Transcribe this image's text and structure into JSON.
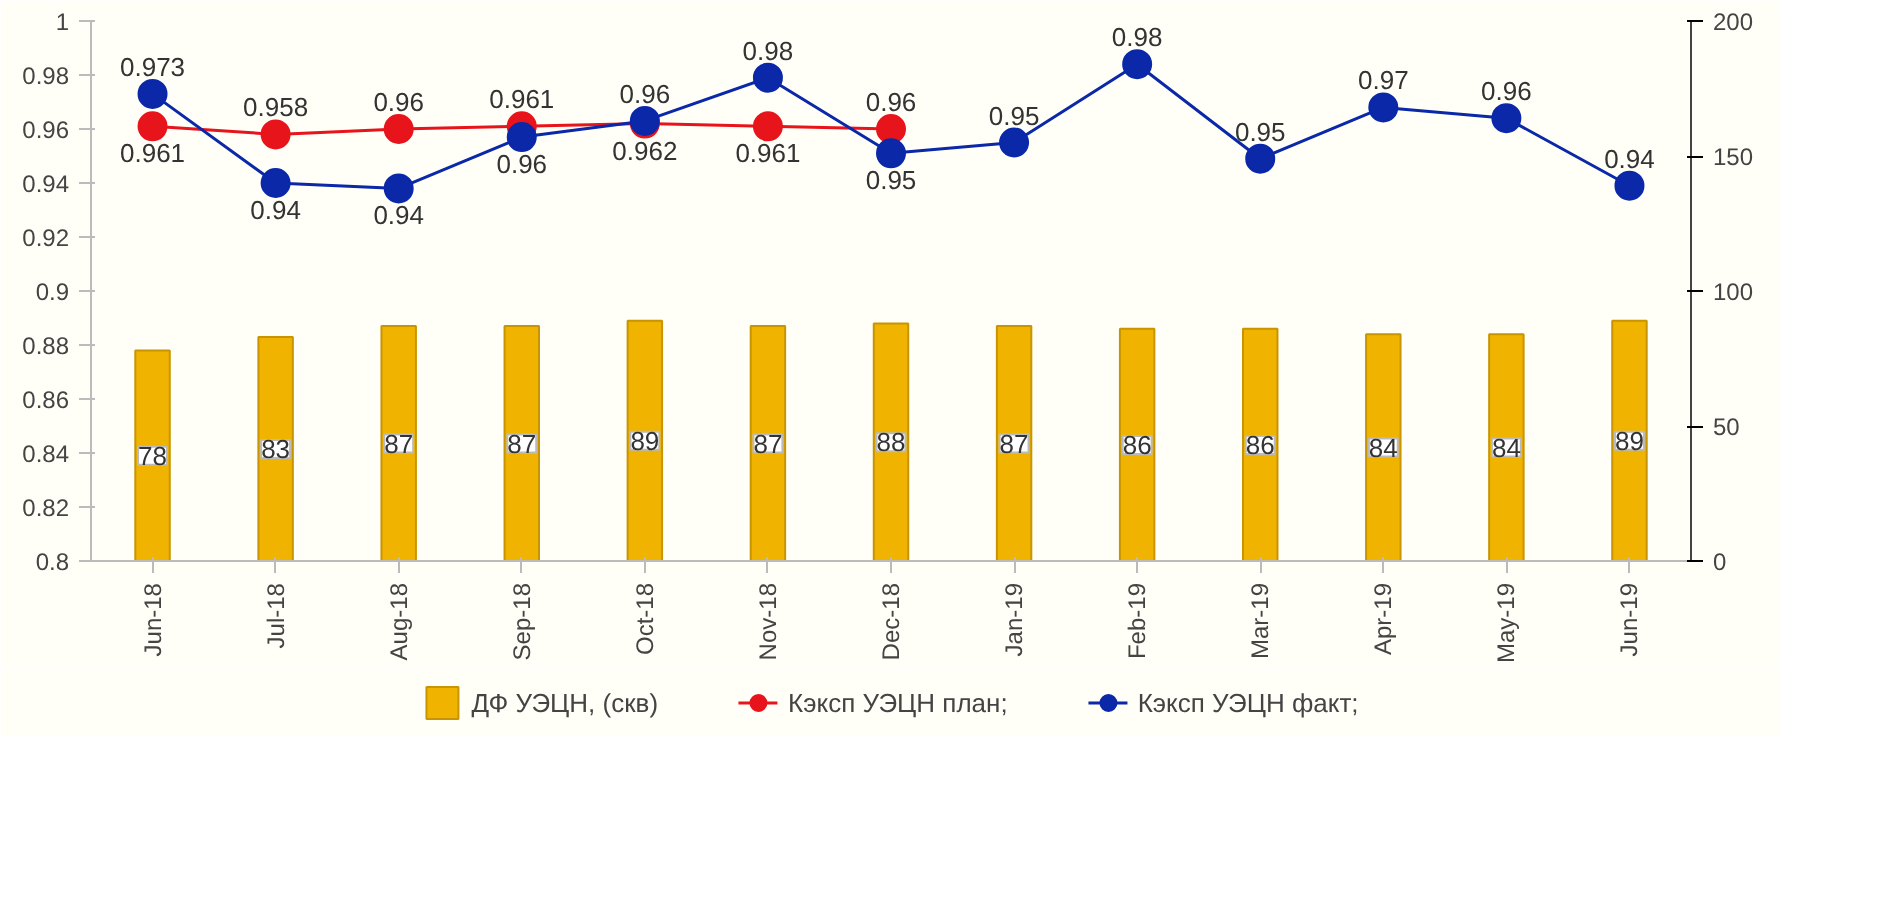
{
  "chart_data": {
    "type": "bar",
    "categories": [
      "Jun-18",
      "Jul-18",
      "Aug-18",
      "Sep-18",
      "Oct-18",
      "Nov-18",
      "Dec-18",
      "Jan-19",
      "Feb-19",
      "Mar-19",
      "Apr-19",
      "May-19",
      "Jun-19"
    ],
    "ylim": [
      0.8,
      1
    ],
    "yticks": [
      0.8,
      0.82,
      0.84,
      0.86,
      0.88,
      0.9,
      0.92,
      0.94,
      0.96,
      0.98,
      1
    ],
    "y2lim": [
      0,
      200
    ],
    "y2ticks": [
      0,
      50,
      100,
      150,
      200
    ],
    "legend": "bottom",
    "grid": false,
    "marker": "circle",
    "series": [
      {
        "name": "ДФ УЭЦН, (скв)",
        "axis": "y2",
        "color": "#f0b400",
        "values": [
          78,
          83,
          87,
          87,
          89,
          87,
          88,
          87,
          86,
          86,
          84,
          84,
          89
        ],
        "value_labels": [
          "78",
          "83",
          "87",
          "87",
          "89",
          "87",
          "88",
          "87",
          "86",
          "86",
          "84",
          "84",
          "89"
        ]
      },
      {
        "name": "Кэксп УЭЦН план;",
        "type": "line",
        "color": "#e8141c",
        "values": [
          0.961,
          0.958,
          0.96,
          0.961,
          0.962,
          0.961,
          0.96,
          null,
          null,
          null,
          null,
          null,
          null
        ],
        "value_labels": [
          "0.961",
          "0.958",
          "0.96",
          "0.961",
          "0.962",
          "0.961",
          "0.96",
          null,
          null,
          null,
          null,
          null,
          null
        ]
      },
      {
        "name": "Кэксп УЭЦН факт;",
        "type": "line",
        "color": "#0a28a8",
        "values": [
          0.973,
          0.94,
          0.938,
          0.957,
          0.963,
          0.979,
          0.951,
          0.955,
          0.984,
          0.949,
          0.968,
          0.964,
          0.939
        ],
        "value_labels": [
          "0.973",
          "0.94",
          "0.94",
          "0.96",
          "0.96",
          "0.98",
          "0.95",
          "0.95",
          "0.98",
          "0.95",
          "0.97",
          "0.96",
          "0.94"
        ]
      }
    ]
  }
}
